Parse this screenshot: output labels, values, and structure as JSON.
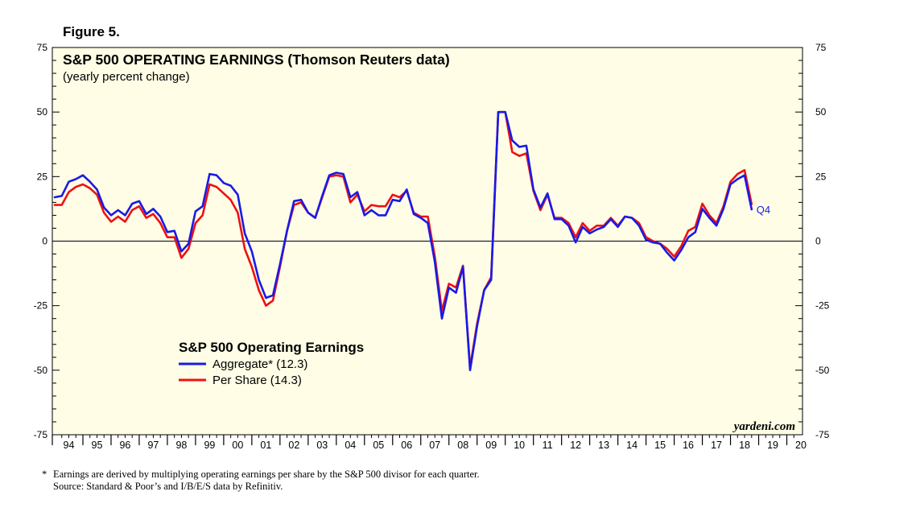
{
  "figure_label": "Figure 5.",
  "chart_data": {
    "type": "line",
    "title": "S&P 500 OPERATING EARNINGS (Thomson Reuters data)",
    "subtitle": "(yearly percent change)",
    "ylim": [
      -75,
      75
    ],
    "yticks": [
      75,
      50,
      25,
      0,
      -25,
      -50,
      -75
    ],
    "xlim": [
      1994,
      2020.5
    ],
    "xtick_labels": [
      "94",
      "95",
      "96",
      "97",
      "98",
      "99",
      "00",
      "01",
      "02",
      "03",
      "04",
      "05",
      "06",
      "07",
      "08",
      "09",
      "10",
      "11",
      "12",
      "13",
      "14",
      "15",
      "16",
      "17",
      "18",
      "19",
      "20"
    ],
    "legend_title": "S&P 500 Operating Earnings",
    "series": [
      {
        "name": "Aggregate* (12.3)",
        "color": "#1a1ae6",
        "x": [
          1994.0,
          1994.25,
          1994.5,
          1994.75,
          1995.0,
          1995.25,
          1995.5,
          1995.75,
          1996.0,
          1996.25,
          1996.5,
          1996.75,
          1997.0,
          1997.25,
          1997.5,
          1997.75,
          1998.0,
          1998.25,
          1998.5,
          1998.75,
          1999.0,
          1999.25,
          1999.5,
          1999.75,
          2000.0,
          2000.25,
          2000.5,
          2000.75,
          2001.0,
          2001.25,
          2001.5,
          2001.75,
          2002.0,
          2002.25,
          2002.5,
          2002.75,
          2003.0,
          2003.25,
          2003.5,
          2003.75,
          2004.0,
          2004.25,
          2004.5,
          2004.75,
          2005.0,
          2005.25,
          2005.5,
          2005.75,
          2006.0,
          2006.25,
          2006.5,
          2006.75,
          2007.0,
          2007.25,
          2007.5,
          2007.75,
          2008.0,
          2008.25,
          2008.5,
          2008.75,
          2009.0,
          2009.25,
          2009.5,
          2009.75,
          2010.0,
          2010.25,
          2010.5,
          2010.75,
          2011.0,
          2011.25,
          2011.5,
          2011.75,
          2012.0,
          2012.25,
          2012.5,
          2012.75,
          2013.0,
          2013.25,
          2013.5,
          2013.75,
          2014.0,
          2014.25,
          2014.5,
          2014.75,
          2015.0,
          2015.25,
          2015.5,
          2015.75,
          2016.0,
          2016.25,
          2016.5,
          2016.75,
          2017.0,
          2017.25,
          2017.5,
          2017.75,
          2018.0,
          2018.25,
          2018.5,
          2018.75
        ],
        "values": [
          17,
          17.5,
          23,
          24,
          25.5,
          23,
          20,
          13,
          10,
          12,
          10,
          14.5,
          15.5,
          10.5,
          12.5,
          9.5,
          3.5,
          4,
          -4,
          -1,
          11.5,
          13.5,
          26,
          25.5,
          22.5,
          21.5,
          18,
          3,
          -4,
          -15,
          -22,
          -21,
          -9,
          4,
          15.5,
          16,
          11,
          9,
          17.5,
          25.5,
          26.5,
          26,
          17,
          19,
          10,
          12,
          10,
          10,
          16,
          15.5,
          20,
          10.5,
          9,
          7,
          -8,
          -30,
          -18,
          -20,
          -10,
          -50,
          -33,
          -19,
          -15,
          50,
          50,
          39,
          36.5,
          37,
          20,
          13,
          18.5,
          8.5,
          8.5,
          6,
          -0.5,
          5.5,
          3,
          4.5,
          5.5,
          8.5,
          5.5,
          9.5,
          9,
          6,
          0.5,
          -0.5,
          -1,
          -4.5,
          -7.5,
          -3.5,
          1.5,
          3.5,
          12.5,
          9,
          6,
          12.5,
          22,
          24,
          25.5,
          12.3
        ]
      },
      {
        "name": "Per Share (14.3)",
        "color": "#ee1111",
        "x": [
          1994.0,
          1994.25,
          1994.5,
          1994.75,
          1995.0,
          1995.25,
          1995.5,
          1995.75,
          1996.0,
          1996.25,
          1996.5,
          1996.75,
          1997.0,
          1997.25,
          1997.5,
          1997.75,
          1998.0,
          1998.25,
          1998.5,
          1998.75,
          1999.0,
          1999.25,
          1999.5,
          1999.75,
          2000.0,
          2000.25,
          2000.5,
          2000.75,
          2001.0,
          2001.25,
          2001.5,
          2001.75,
          2002.0,
          2002.25,
          2002.5,
          2002.75,
          2003.0,
          2003.25,
          2003.5,
          2003.75,
          2004.0,
          2004.25,
          2004.5,
          2004.75,
          2005.0,
          2005.25,
          2005.5,
          2005.75,
          2006.0,
          2006.25,
          2006.5,
          2006.75,
          2007.0,
          2007.25,
          2007.5,
          2007.75,
          2008.0,
          2008.25,
          2008.5,
          2008.75,
          2009.0,
          2009.25,
          2009.5,
          2009.75,
          2010.0,
          2010.25,
          2010.5,
          2010.75,
          2011.0,
          2011.25,
          2011.5,
          2011.75,
          2012.0,
          2012.25,
          2012.5,
          2012.75,
          2013.0,
          2013.25,
          2013.5,
          2013.75,
          2014.0,
          2014.25,
          2014.5,
          2014.75,
          2015.0,
          2015.25,
          2015.5,
          2015.75,
          2016.0,
          2016.25,
          2016.5,
          2016.75,
          2017.0,
          2017.25,
          2017.5,
          2017.75,
          2018.0,
          2018.25,
          2018.5,
          2018.75
        ],
        "values": [
          14,
          14,
          19,
          21,
          22,
          20.5,
          18,
          11,
          7.5,
          9.5,
          7.5,
          12,
          13.5,
          9,
          10.5,
          7,
          1.5,
          1.5,
          -6.5,
          -3,
          7,
          10,
          22,
          21,
          18.5,
          16,
          11,
          -3,
          -10,
          -19,
          -25,
          -23,
          -10,
          4,
          14,
          15,
          11,
          9,
          17,
          25,
          25.5,
          25,
          15,
          18,
          11.5,
          14,
          13.5,
          13.5,
          18,
          17,
          19.5,
          11,
          9.5,
          9.5,
          -6,
          -27,
          -16.5,
          -18,
          -9.5,
          -49,
          -32,
          -19,
          -14,
          50,
          50,
          34.5,
          33,
          34,
          19.5,
          12,
          18,
          9,
          9,
          7,
          1.5,
          7,
          4,
          6,
          6,
          9,
          6,
          9.5,
          9,
          7,
          1.5,
          0,
          -1,
          -3,
          -6,
          -2,
          4,
          5.5,
          14.5,
          10,
          7,
          13.5,
          23,
          26,
          27.5,
          14.3
        ]
      }
    ],
    "latest_label": "Q4",
    "watermark": "yardeni.com"
  },
  "footnote": {
    "marker": "*",
    "line1": "Earnings are derived by multiplying operating earnings per share by the S&P 500 divisor for each quarter.",
    "line2": "Source: Standard & Poor’s and I/B/E/S data by Refinitiv."
  }
}
